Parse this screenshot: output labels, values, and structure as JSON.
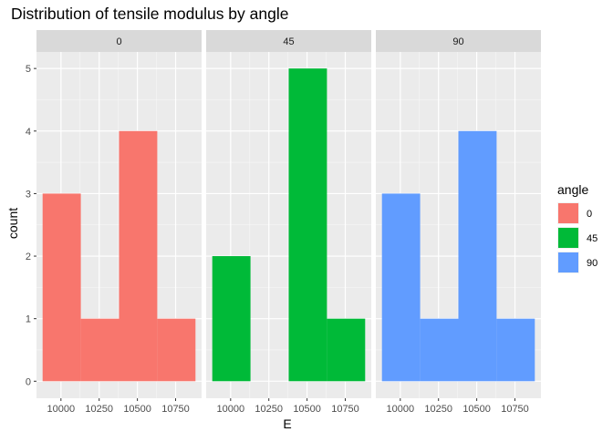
{
  "chart_data": {
    "type": "bar",
    "title": "Distribution of tensile modulus by angle",
    "xlabel": "E",
    "ylabel": "count",
    "facet_variable": "angle",
    "bin_edges": [
      9880,
      10130,
      10380,
      10630,
      10880
    ],
    "x_ticks": [
      10000,
      10250,
      10500,
      10750
    ],
    "x_tick_labels": [
      "10000",
      "10250",
      "10500",
      "10750"
    ],
    "y_ticks": [
      0,
      1,
      2,
      3,
      4,
      5
    ],
    "ylim": [
      0,
      5
    ],
    "grid": true,
    "legend": {
      "title": "angle",
      "position": "right",
      "entries": [
        {
          "label": "0",
          "color": "#F8766D"
        },
        {
          "label": "45",
          "color": "#00BA38"
        },
        {
          "label": "90",
          "color": "#619CFF"
        }
      ]
    },
    "series": [
      {
        "name": "0",
        "color": "#F8766D",
        "values": [
          3,
          1,
          4,
          1
        ]
      },
      {
        "name": "45",
        "color": "#00BA38",
        "values": [
          2,
          0,
          5,
          1
        ]
      },
      {
        "name": "90",
        "color": "#619CFF",
        "values": [
          3,
          1,
          4,
          1
        ]
      }
    ]
  }
}
